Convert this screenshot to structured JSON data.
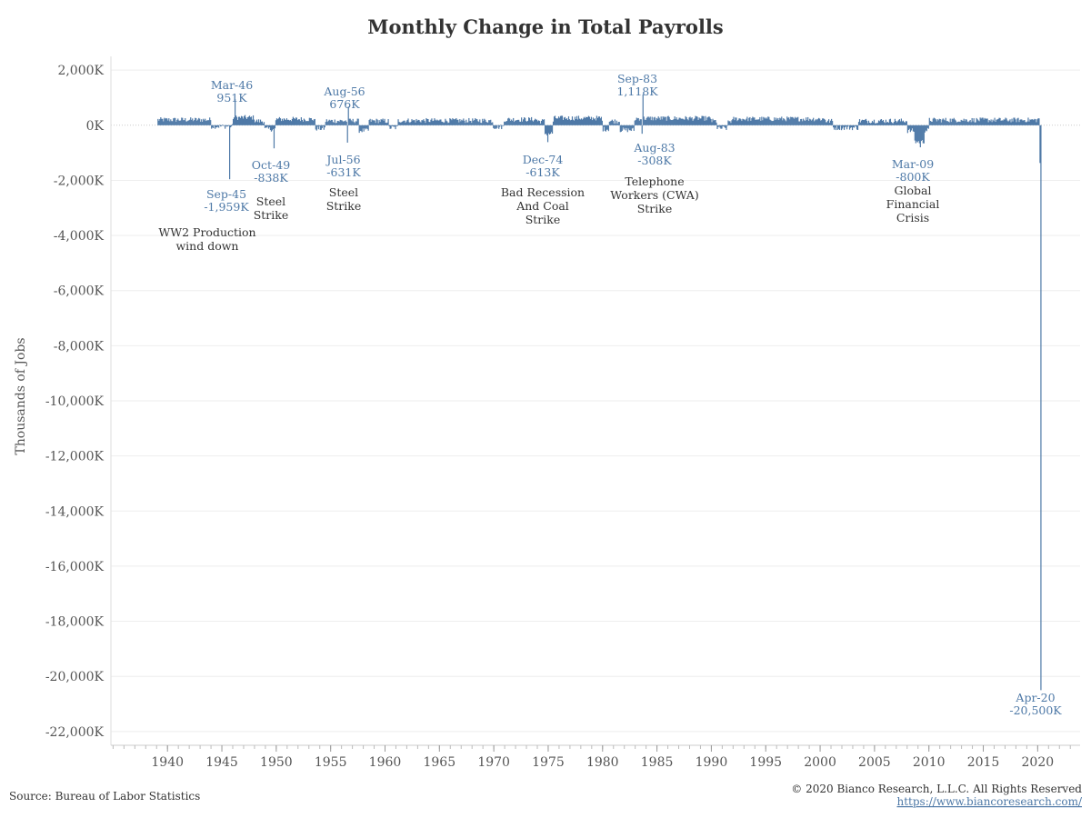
{
  "chart_data": {
    "type": "bar",
    "title": "Monthly Change in Total Payrolls",
    "ylabel": "Thousands of Jobs",
    "xlabel": "",
    "ylim": [
      -22500,
      2500
    ],
    "xlim": [
      1934.8,
      2023.9
    ],
    "y_ticks": [
      {
        "value": 2000,
        "label": "2,000K"
      },
      {
        "value": 0,
        "label": "0K"
      },
      {
        "value": -2000,
        "label": "-2,000K"
      },
      {
        "value": -4000,
        "label": "-4,000K"
      },
      {
        "value": -6000,
        "label": "-6,000K"
      },
      {
        "value": -8000,
        "label": "-8,000K"
      },
      {
        "value": -10000,
        "label": "-10,000K"
      },
      {
        "value": -12000,
        "label": "-12,000K"
      },
      {
        "value": -14000,
        "label": "-14,000K"
      },
      {
        "value": -16000,
        "label": "-16,000K"
      },
      {
        "value": -18000,
        "label": "-18,000K"
      },
      {
        "value": -20000,
        "label": "-20,000K"
      },
      {
        "value": -22000,
        "label": "-22,000K"
      }
    ],
    "x_ticks": [
      1940,
      1945,
      1950,
      1955,
      1960,
      1965,
      1970,
      1975,
      1980,
      1985,
      1990,
      1995,
      2000,
      2005,
      2010,
      2015,
      2020
    ],
    "grid": true,
    "color": "#4e79a7",
    "series_note_values": [
      {
        "date": "1945-09",
        "value": -1959
      },
      {
        "date": "1946-03",
        "value": 951
      },
      {
        "date": "1949-10",
        "value": -838
      },
      {
        "date": "1956-08",
        "value": 676
      },
      {
        "date": "1956-07",
        "value": -631
      },
      {
        "date": "1974-12",
        "value": -613
      },
      {
        "date": "1983-09",
        "value": 1118
      },
      {
        "date": "1983-08",
        "value": -308
      },
      {
        "date": "2009-03",
        "value": -800
      },
      {
        "date": "2020-04",
        "value": -20500
      }
    ],
    "annotations": [
      {
        "date_label": "Mar-46",
        "value_label": "951K"
      },
      {
        "date_label": "Sep-45",
        "value_label": "-1,959K",
        "note": [
          "WW2 Production",
          "wind down"
        ]
      },
      {
        "date_label": "Oct-49",
        "value_label": "-838K",
        "note": [
          "Steel",
          "Strike"
        ]
      },
      {
        "date_label": "Aug-56",
        "value_label": "676K"
      },
      {
        "date_label": "Jul-56",
        "value_label": "-631K",
        "note": [
          "Steel",
          "Strike"
        ]
      },
      {
        "date_label": "Dec-74",
        "value_label": "-613K",
        "note": [
          "Bad Recession",
          "And Coal",
          "Strike"
        ]
      },
      {
        "date_label": "Sep-83",
        "value_label": "1,118K"
      },
      {
        "date_label": "Aug-83",
        "value_label": "-308K",
        "note": [
          "Telephone",
          "Workers (CWA)",
          "Strike"
        ]
      },
      {
        "date_label": "Mar-09",
        "value_label": "-800K",
        "note": [
          "Global",
          "Financial",
          "Crisis"
        ]
      },
      {
        "date_label": "Apr-20",
        "value_label": "-20,500K"
      }
    ]
  },
  "footer": {
    "source": "Source: Bureau of Labor Statistics",
    "copyright": "© 2020 Bianco Research, L.L.C. All Rights Reserved",
    "url": "https://www.biancoresearch.com/"
  }
}
